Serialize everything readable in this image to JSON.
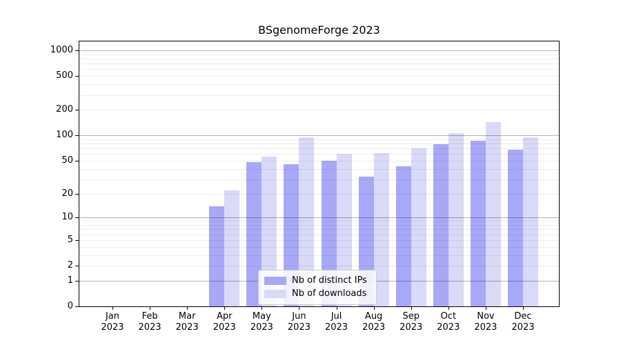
{
  "chart_data": {
    "type": "bar",
    "title": "BSgenomeForge 2023",
    "categories": [
      "Jan 2023",
      "Feb 2023",
      "Mar 2023",
      "Apr 2023",
      "May 2023",
      "Jun 2023",
      "Jul 2023",
      "Aug 2023",
      "Sep 2023",
      "Oct 2023",
      "Nov 2023",
      "Dec 2023"
    ],
    "series": [
      {
        "name": "Nb of distinct IPs",
        "color": "#a8a8f8",
        "values": [
          0,
          0,
          0,
          14,
          48,
          45,
          50,
          32,
          43,
          78,
          87,
          68
        ]
      },
      {
        "name": "Nb of downloads",
        "color": "#d9d9f8",
        "values": [
          0,
          0,
          0,
          22,
          56,
          94,
          60,
          62,
          70,
          106,
          144,
          94
        ]
      }
    ],
    "xlabel": "",
    "ylabel": "",
    "yscale": "log1p",
    "yticks": [
      0,
      1,
      2,
      5,
      10,
      20,
      50,
      100,
      200,
      500,
      1000
    ],
    "ylim": [
      0,
      1275
    ],
    "grid": {
      "major_lines": [
        1,
        10,
        100,
        1000
      ],
      "major_color": "rgba(0,0,0,0.30)",
      "minor_color": "rgba(0,0,0,0.075)"
    },
    "legend": {
      "position": "bottom-center",
      "entries": [
        "Nb of distinct IPs",
        "Nb of downloads"
      ]
    },
    "colors": {
      "background": "#ffffff",
      "text": "#000000",
      "axis": "#000000"
    }
  }
}
